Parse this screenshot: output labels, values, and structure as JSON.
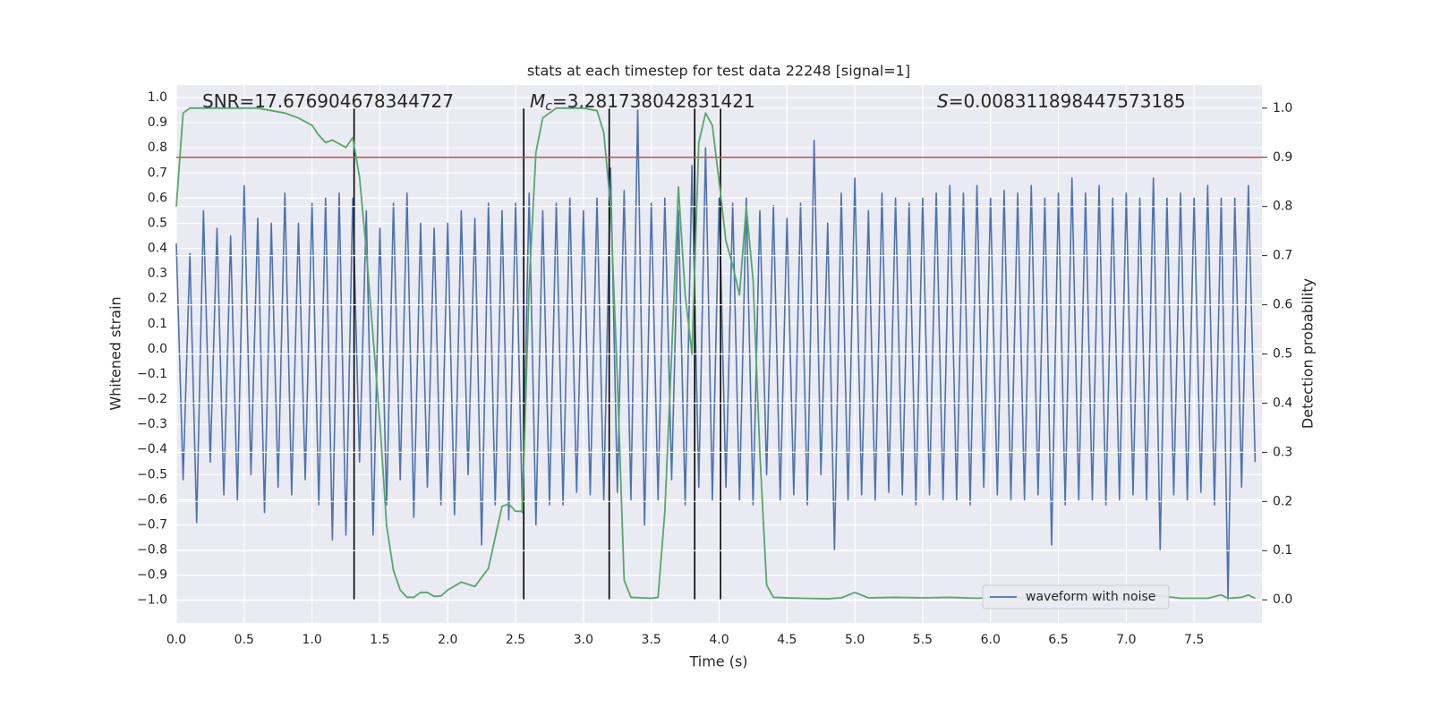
{
  "chart_data": {
    "type": "line",
    "title": "stats at each timestep for test data 22248 [signal=1]",
    "x_label": "Time (s)",
    "y_label": "Whitened strain",
    "y2_label": "Detection probability",
    "xlim": [
      0,
      8
    ],
    "ylim": [
      -1.09,
      1.05
    ],
    "y2lim": [
      -0.047,
      1.047
    ],
    "xticks": [
      {
        "value": 0,
        "label": "0.0"
      },
      0.5,
      {
        "value": 1,
        "label": "1.0"
      },
      1.5,
      {
        "value": 2,
        "label": "2.0"
      },
      2.5,
      {
        "value": 3,
        "label": "3.0"
      },
      3.5,
      {
        "value": 4,
        "label": "4.0"
      },
      4.5,
      {
        "value": 5,
        "label": "5.0"
      },
      5.5,
      {
        "value": 6,
        "label": "6.0"
      },
      6.5,
      {
        "value": 7,
        "label": "7.0"
      },
      7.5
    ],
    "yticks": [
      {
        "value": 1,
        "label": "1.0"
      },
      0.9,
      0.8,
      0.7,
      0.6,
      0.5,
      0.4,
      0.3,
      0.2,
      0.1,
      {
        "value": 0,
        "label": "0.0"
      },
      {
        "value": -0.1,
        "label": "−0.1"
      },
      {
        "value": -0.2,
        "label": "−0.2"
      },
      {
        "value": -0.3,
        "label": "−0.3"
      },
      {
        "value": -0.4,
        "label": "−0.4"
      },
      {
        "value": -0.5,
        "label": "−0.5"
      },
      {
        "value": -0.6,
        "label": "−0.6"
      },
      {
        "value": -0.7,
        "label": "−0.7"
      },
      {
        "value": -0.8,
        "label": "−0.8"
      },
      {
        "value": -0.9,
        "label": "−0.9"
      },
      {
        "value": -1,
        "label": "−1.0"
      }
    ],
    "y2ticks": [
      {
        "value": 0,
        "label": "0.0"
      },
      0.1,
      0.2,
      0.3,
      0.4,
      0.5,
      0.6,
      0.7,
      0.8,
      0.9,
      {
        "value": 1,
        "label": "1.0"
      }
    ],
    "grid": true,
    "legend": "lower right",
    "series": [
      {
        "name": "waveform with noise",
        "color": "#4c72b0",
        "x": [
          0,
          0.05,
          0.1,
          0.15,
          0.2,
          0.25,
          0.3,
          0.35,
          0.4,
          0.45,
          0.5,
          0.55,
          0.6,
          0.65,
          0.7,
          0.75,
          0.8,
          0.85,
          0.9,
          0.95,
          1,
          1.05,
          1.1,
          1.15,
          1.2,
          1.25,
          1.3,
          1.35,
          1.4,
          1.45,
          1.5,
          1.55,
          1.6,
          1.65,
          1.7,
          1.75,
          1.8,
          1.85,
          1.9,
          1.95,
          2,
          2.05,
          2.1,
          2.15,
          2.2,
          2.25,
          2.3,
          2.35,
          2.4,
          2.45,
          2.5,
          2.55,
          2.6,
          2.65,
          2.7,
          2.75,
          2.8,
          2.85,
          2.9,
          2.95,
          3,
          3.05,
          3.1,
          3.15,
          3.2,
          3.25,
          3.3,
          3.35,
          3.4,
          3.45,
          3.5,
          3.55,
          3.6,
          3.65,
          3.7,
          3.75,
          3.8,
          3.85,
          3.9,
          3.95,
          4,
          4.05,
          4.1,
          4.15,
          4.2,
          4.25,
          4.3,
          4.35,
          4.4,
          4.45,
          4.5,
          4.55,
          4.6,
          4.65,
          4.7,
          4.75,
          4.8,
          4.85,
          4.9,
          4.95,
          5,
          5.05,
          5.1,
          5.15,
          5.2,
          5.25,
          5.3,
          5.35,
          5.4,
          5.45,
          5.5,
          5.55,
          5.6,
          5.65,
          5.7,
          5.75,
          5.8,
          5.85,
          5.9,
          5.95,
          6,
          6.05,
          6.1,
          6.15,
          6.2,
          6.25,
          6.3,
          6.35,
          6.4,
          6.45,
          6.5,
          6.55,
          6.6,
          6.65,
          6.7,
          6.75,
          6.8,
          6.85,
          6.9,
          6.95,
          7,
          7.05,
          7.1,
          7.15,
          7.2,
          7.25,
          7.3,
          7.35,
          7.4,
          7.45,
          7.5,
          7.55,
          7.6,
          7.65,
          7.7,
          7.75,
          7.8,
          7.85,
          7.9,
          7.95
        ],
        "values": [
          0.42,
          -0.52,
          0.38,
          -0.69,
          0.55,
          -0.45,
          0.48,
          -0.58,
          0.45,
          -0.6,
          0.65,
          -0.5,
          0.52,
          -0.65,
          0.5,
          -0.55,
          0.62,
          -0.58,
          0.5,
          -0.52,
          0.58,
          -0.62,
          0.6,
          -0.76,
          0.62,
          -0.74,
          0.6,
          -0.45,
          0.55,
          -0.74,
          0.48,
          -0.62,
          0.58,
          -0.52,
          0.62,
          -0.67,
          0.5,
          -0.55,
          0.48,
          -0.62,
          0.5,
          -0.66,
          0.55,
          -0.5,
          0.52,
          -0.78,
          0.58,
          -0.62,
          0.55,
          -0.68,
          0.58,
          -0.65,
          0.62,
          -0.7,
          0.55,
          -0.62,
          0.58,
          -0.62,
          0.6,
          -0.57,
          0.55,
          -0.58,
          0.6,
          -0.6,
          0.72,
          -0.57,
          0.63,
          -0.6,
          0.95,
          -0.7,
          0.58,
          -0.6,
          0.6,
          -0.52,
          0.55,
          -0.62,
          0.73,
          -0.55,
          0.8,
          -0.6,
          0.6,
          -0.55,
          0.58,
          -0.6,
          0.6,
          -0.62,
          0.55,
          -0.5,
          0.57,
          -0.6,
          0.52,
          -0.58,
          0.58,
          -0.62,
          0.83,
          -0.5,
          0.5,
          -0.8,
          0.62,
          -0.6,
          0.68,
          -0.58,
          0.55,
          -0.6,
          0.62,
          -0.57,
          0.6,
          -0.58,
          0.58,
          -0.62,
          0.6,
          -0.58,
          0.62,
          -0.6,
          0.65,
          -0.6,
          0.62,
          -0.62,
          0.65,
          -0.55,
          0.6,
          -0.58,
          0.63,
          -0.6,
          0.62,
          -0.6,
          0.65,
          -0.58,
          0.6,
          -0.78,
          0.62,
          -0.62,
          0.68,
          -0.6,
          0.62,
          -0.6,
          0.65,
          -0.62,
          0.6,
          -0.6,
          0.62,
          -0.58,
          0.6,
          -0.6,
          0.68,
          -0.8,
          0.6,
          -0.58,
          0.62,
          -0.6,
          0.6,
          -0.57,
          0.65,
          -0.62,
          0.6,
          -1.0,
          0.6,
          -0.55,
          0.65,
          -0.45
        ]
      },
      {
        "axis": "y2",
        "color": "#55a868",
        "x": [
          0,
          0.05,
          0.1,
          0.2,
          0.4,
          0.6,
          0.7,
          0.8,
          0.9,
          1,
          1.05,
          1.1,
          1.15,
          1.25,
          1.3,
          1.35,
          1.4,
          1.5,
          1.55,
          1.6,
          1.65,
          1.7,
          1.75,
          1.8,
          1.85,
          1.9,
          1.95,
          2,
          2.1,
          2.2,
          2.3,
          2.4,
          2.45,
          2.5,
          2.55,
          2.6,
          2.65,
          2.7,
          2.8,
          3,
          3.1,
          3.15,
          3.2,
          3.25,
          3.3,
          3.35,
          3.5,
          3.55,
          3.6,
          3.65,
          3.7,
          3.75,
          3.8,
          3.85,
          3.9,
          3.95,
          4,
          4.05,
          4.1,
          4.15,
          4.2,
          4.25,
          4.3,
          4.35,
          4.4,
          4.6,
          4.8,
          4.9,
          5,
          5.1,
          5.3,
          5.5,
          5.7,
          5.9,
          6.1,
          6.3,
          6.5,
          6.7,
          6.9,
          7.1,
          7.25,
          7.4,
          7.6,
          7.7,
          7.75,
          7.85,
          7.9,
          7.95
        ],
        "values": [
          0.8,
          0.99,
          1,
          1,
          1,
          1,
          0.995,
          0.99,
          0.98,
          0.965,
          0.945,
          0.93,
          0.935,
          0.92,
          0.94,
          0.86,
          0.71,
          0.36,
          0.15,
          0.06,
          0.02,
          0.005,
          0.005,
          0.015,
          0.015,
          0.007,
          0.008,
          0.02,
          0.036,
          0.027,
          0.064,
          0.19,
          0.195,
          0.18,
          0.18,
          0.64,
          0.91,
          0.98,
          1,
          1,
          0.995,
          0.95,
          0.8,
          0.45,
          0.04,
          0.005,
          0.003,
          0.005,
          0.18,
          0.5,
          0.84,
          0.62,
          0.5,
          0.93,
          0.99,
          0.965,
          0.85,
          0.73,
          0.68,
          0.62,
          0.8,
          0.65,
          0.3,
          0.03,
          0.005,
          0.003,
          0.002,
          0.004,
          0.015,
          0.004,
          0.005,
          0.004,
          0.005,
          0.003,
          0.006,
          0.003,
          0.003,
          0.004,
          0.003,
          0.003,
          0.008,
          0.003,
          0.003,
          0.01,
          0.003,
          0.005,
          0.01,
          0.003
        ]
      }
    ],
    "hlines": [
      {
        "value": 0.9,
        "axis": "y2",
        "color": "#c44e52"
      }
    ],
    "vlines": {
      "x": [
        1.31,
        2.56,
        3.19,
        3.82,
        4.01
      ],
      "ymin": 0,
      "ymax": 1,
      "axis": "y2",
      "color": "#000000"
    },
    "annotations": [
      {
        "text": "SNR=17.676904678344727"
      },
      {
        "symbol": "M",
        "subscript": "c",
        "text": "=3.281738042831421"
      },
      {
        "symbol": "S",
        "text": "=0.008311898447573185"
      }
    ]
  }
}
